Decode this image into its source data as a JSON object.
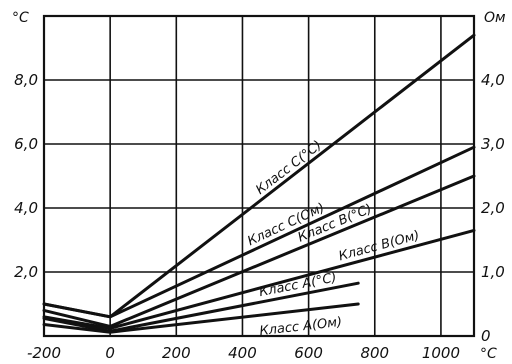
{
  "chart_data": {
    "type": "line",
    "grid": true,
    "x_axis": {
      "unit": "°C",
      "ticks": [
        "-200",
        "0",
        "200",
        "400",
        "600",
        "800",
        "1000"
      ],
      "xlim": [
        -200,
        1100
      ]
    },
    "y_left": {
      "unit": "°C",
      "ticks": [
        "2,0",
        "4,0",
        "6,0",
        "8,0"
      ],
      "ylim": [
        0,
        10
      ]
    },
    "y_right": {
      "unit": "Ом",
      "ticks": [
        "0",
        "1,0",
        "2,0",
        "3,0",
        "4,0"
      ],
      "ylim": [
        0,
        5
      ]
    },
    "series": [
      {
        "name": "Класс C(°C)",
        "axis": "left",
        "x": [
          -200,
          0,
          1100
        ],
        "y": [
          1.0,
          0.6,
          9.4
        ]
      },
      {
        "name": "Класс C(Ом)",
        "axis": "right",
        "x": [
          -200,
          0,
          1100
        ],
        "y": [
          0.5,
          0.3,
          2.95
        ]
      },
      {
        "name": "Класс B(°C)",
        "axis": "left",
        "x": [
          -200,
          0,
          1100
        ],
        "y": [
          0.8,
          0.3,
          5.0
        ]
      },
      {
        "name": "Класс B(Ом)",
        "axis": "right",
        "x": [
          -200,
          0,
          1100
        ],
        "y": [
          0.3,
          0.12,
          1.65
        ]
      },
      {
        "name": "Класс A(°C)",
        "axis": "left",
        "x": [
          -200,
          0,
          750
        ],
        "y": [
          0.55,
          0.15,
          1.65
        ]
      },
      {
        "name": "Класс A(Ом)",
        "axis": "right",
        "x": [
          -200,
          0,
          750
        ],
        "y": [
          0.18,
          0.06,
          0.5
        ]
      }
    ]
  }
}
